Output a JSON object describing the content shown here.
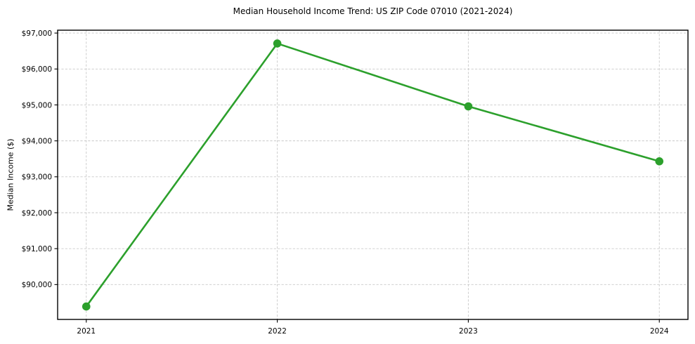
{
  "chart_data": {
    "type": "line",
    "title": "Median Household Income Trend: US ZIP Code 07010 (2021-2024)",
    "xlabel": "",
    "ylabel": "Median Income ($)",
    "x": [
      2021,
      2022,
      2023,
      2024
    ],
    "values": [
      89390,
      96710,
      94960,
      93430
    ],
    "xticks": [
      {
        "value": 2021,
        "label": "2021"
      },
      {
        "value": 2022,
        "label": "2022"
      },
      {
        "value": 2023,
        "label": "2023"
      },
      {
        "value": 2024,
        "label": "2024"
      }
    ],
    "yticks": [
      {
        "value": 90000,
        "label": "$90,000"
      },
      {
        "value": 91000,
        "label": "$91,000"
      },
      {
        "value": 92000,
        "label": "$92,000"
      },
      {
        "value": 93000,
        "label": "$93,000"
      },
      {
        "value": 94000,
        "label": "$94,000"
      },
      {
        "value": 95000,
        "label": "$95,000"
      },
      {
        "value": 96000,
        "label": "$96,000"
      },
      {
        "value": 97000,
        "label": "$97,000"
      }
    ],
    "xlim": [
      2020.85,
      2024.15
    ],
    "ylim": [
      89030,
      97080
    ],
    "grid": true,
    "grid_style": "dashed",
    "legend": "none",
    "line_color": "#2ca02c",
    "marker": "circle",
    "background": "#ffffff"
  }
}
